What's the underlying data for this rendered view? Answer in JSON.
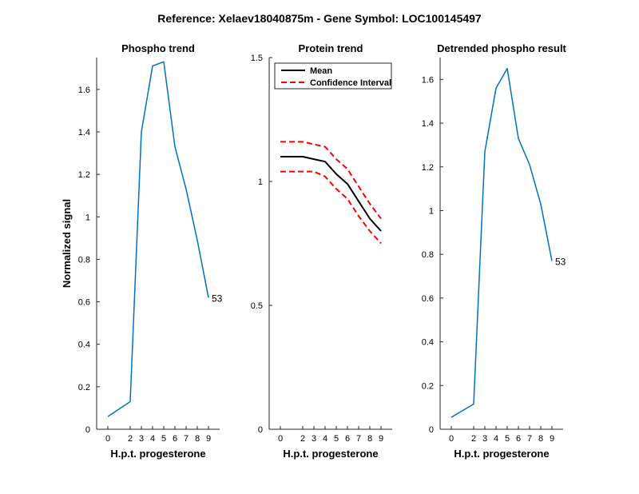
{
  "figure": {
    "title": "Reference:  Xelaev18040875m - Gene Symbol:  LOC100145497"
  },
  "chart_data": [
    {
      "type": "line",
      "title": "Phospho trend",
      "xlabel": "H.p.t. progesterone",
      "ylabel": "Normalized signal",
      "xlim": [
        -1,
        10
      ],
      "ylim": [
        0,
        1.75
      ],
      "xticks": [
        0,
        2,
        3,
        4,
        5,
        6,
        7,
        8,
        9
      ],
      "xtick_labels": [
        "0",
        "2",
        "3",
        "4",
        "5",
        "6",
        "7",
        "8",
        "9"
      ],
      "yticks": [
        0,
        0.2,
        0.4,
        0.6,
        0.8,
        1,
        1.2,
        1.4,
        1.6
      ],
      "ytick_labels": [
        "0",
        "0.2",
        "0.4",
        "0.6",
        "0.8",
        "1",
        "1.2",
        "1.4",
        "1.6"
      ],
      "grid": false,
      "series": [
        {
          "color": "#0072BD",
          "x": [
            0,
            2,
            3,
            4,
            5,
            6,
            7,
            8,
            9
          ],
          "y": [
            0.06,
            0.13,
            1.4,
            1.71,
            1.73,
            1.33,
            1.13,
            0.89,
            0.62
          ]
        }
      ],
      "annotations": [
        {
          "text": "53",
          "x": 9,
          "y": 0.62
        }
      ]
    },
    {
      "type": "line",
      "title": "Protein trend",
      "xlabel": "H.p.t. progesterone",
      "ylabel": "",
      "xlim": [
        -1,
        10
      ],
      "ylim": [
        0,
        1.5
      ],
      "xticks": [
        0,
        2,
        3,
        4,
        5,
        6,
        7,
        8,
        9
      ],
      "xtick_labels": [
        "0",
        "2",
        "3",
        "4",
        "5",
        "6",
        "7",
        "8",
        "9"
      ],
      "yticks": [
        0,
        0.5,
        1,
        1.5
      ],
      "ytick_labels": [
        "0",
        "0.5",
        "1",
        "1.5"
      ],
      "grid": false,
      "legend": {
        "placement": "top-left"
      },
      "series": [
        {
          "name": "Mean",
          "color": "#000000",
          "dash": "solid",
          "x": [
            0,
            2,
            3,
            4,
            5,
            6,
            7,
            8,
            9
          ],
          "y": [
            1.1,
            1.1,
            1.09,
            1.08,
            1.03,
            0.99,
            0.92,
            0.85,
            0.8
          ]
        },
        {
          "name": "Confidence Interval",
          "color": "#FF0000",
          "dash": "dashed",
          "x": [
            0,
            2,
            3,
            4,
            5,
            6,
            7,
            8,
            9
          ],
          "y": [
            1.16,
            1.16,
            1.15,
            1.14,
            1.09,
            1.05,
            0.98,
            0.91,
            0.85
          ]
        },
        {
          "color": "#FF0000",
          "dash": "dashed",
          "x": [
            0,
            2,
            3,
            4,
            5,
            6,
            7,
            8,
            9
          ],
          "y": [
            1.04,
            1.04,
            1.04,
            1.02,
            0.97,
            0.93,
            0.86,
            0.8,
            0.75
          ]
        }
      ]
    },
    {
      "type": "line",
      "title": "Detrended phospho result",
      "xlabel": "H.p.t. progesterone",
      "ylabel": "",
      "xlim": [
        -1,
        10
      ],
      "ylim": [
        0,
        1.7
      ],
      "xticks": [
        0,
        2,
        3,
        4,
        5,
        6,
        7,
        8,
        9
      ],
      "xtick_labels": [
        "0",
        "2",
        "3",
        "4",
        "5",
        "6",
        "7",
        "8",
        "9"
      ],
      "yticks": [
        0,
        0.2,
        0.4,
        0.6,
        0.8,
        1,
        1.2,
        1.4,
        1.6
      ],
      "ytick_labels": [
        "0",
        "0.2",
        "0.4",
        "0.6",
        "0.8",
        "1",
        "1.2",
        "1.4",
        "1.6"
      ],
      "grid": false,
      "series": [
        {
          "color": "#0072BD",
          "x": [
            0,
            2,
            3,
            4,
            5,
            6,
            7,
            8,
            9
          ],
          "y": [
            0.055,
            0.115,
            1.27,
            1.56,
            1.65,
            1.33,
            1.21,
            1.03,
            0.77
          ]
        }
      ],
      "annotations": [
        {
          "text": "53",
          "x": 9,
          "y": 0.77
        }
      ]
    }
  ]
}
